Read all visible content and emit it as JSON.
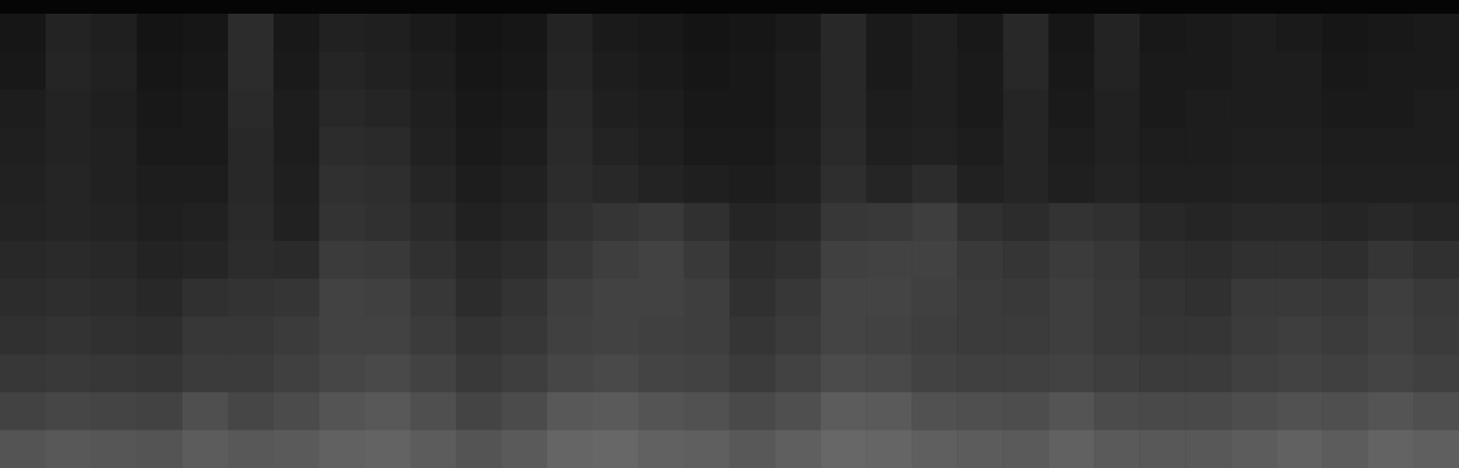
{
  "chart_data": {
    "type": "heatmap",
    "tick_labels": false,
    "zlim": [
      0,
      100
    ],
    "cells": [
      [
        10,
        16,
        14,
        9,
        10,
        20,
        11,
        15,
        14,
        12,
        9,
        10,
        16,
        12,
        11,
        9,
        10,
        12,
        18,
        12,
        14,
        11,
        18,
        10,
        16,
        11,
        12,
        13,
        12,
        10,
        11,
        12
      ],
      [
        11,
        17,
        15,
        10,
        11,
        20,
        12,
        17,
        15,
        13,
        10,
        11,
        17,
        13,
        12,
        10,
        11,
        13,
        18,
        12,
        14,
        12,
        18,
        11,
        16,
        12,
        12,
        13,
        13,
        11,
        12,
        12
      ],
      [
        13,
        16,
        14,
        11,
        12,
        19,
        13,
        18,
        17,
        14,
        11,
        12,
        18,
        14,
        13,
        11,
        11,
        13,
        18,
        13,
        14,
        12,
        17,
        12,
        15,
        12,
        13,
        13,
        13,
        12,
        12,
        13
      ],
      [
        14,
        16,
        15,
        12,
        12,
        18,
        13,
        20,
        19,
        15,
        12,
        13,
        19,
        16,
        14,
        12,
        12,
        14,
        19,
        14,
        15,
        13,
        17,
        13,
        15,
        13,
        13,
        14,
        14,
        13,
        13,
        13
      ],
      [
        15,
        17,
        15,
        13,
        13,
        18,
        14,
        22,
        21,
        17,
        13,
        15,
        20,
        18,
        16,
        14,
        13,
        15,
        21,
        17,
        20,
        15,
        17,
        14,
        16,
        14,
        14,
        15,
        15,
        14,
        14,
        14
      ],
      [
        16,
        17,
        16,
        14,
        15,
        19,
        15,
        23,
        22,
        19,
        15,
        17,
        22,
        24,
        26,
        22,
        17,
        18,
        25,
        26,
        28,
        22,
        20,
        23,
        22,
        18,
        17,
        18,
        18,
        17,
        18,
        17
      ],
      [
        18,
        19,
        18,
        16,
        17,
        20,
        19,
        27,
        26,
        22,
        18,
        20,
        25,
        28,
        30,
        26,
        20,
        22,
        29,
        30,
        30,
        26,
        24,
        27,
        25,
        21,
        20,
        22,
        22,
        21,
        24,
        22
      ],
      [
        20,
        21,
        20,
        18,
        22,
        23,
        24,
        30,
        29,
        25,
        20,
        23,
        28,
        30,
        30,
        28,
        22,
        25,
        31,
        31,
        29,
        27,
        26,
        28,
        26,
        23,
        22,
        26,
        26,
        25,
        28,
        26
      ],
      [
        22,
        23,
        22,
        21,
        25,
        25,
        27,
        30,
        30,
        27,
        23,
        25,
        29,
        30,
        29,
        28,
        24,
        27,
        31,
        30,
        28,
        27,
        27,
        28,
        26,
        24,
        24,
        27,
        28,
        27,
        29,
        27
      ],
      [
        25,
        26,
        25,
        24,
        27,
        27,
        29,
        32,
        33,
        30,
        26,
        28,
        32,
        33,
        31,
        30,
        27,
        30,
        34,
        33,
        30,
        29,
        29,
        30,
        28,
        27,
        27,
        29,
        30,
        29,
        31,
        29
      ],
      [
        30,
        32,
        31,
        30,
        36,
        32,
        34,
        38,
        40,
        36,
        31,
        34,
        40,
        41,
        38,
        37,
        33,
        36,
        42,
        41,
        37,
        36,
        35,
        38,
        34,
        33,
        33,
        35,
        37,
        36,
        38,
        36
      ],
      [
        38,
        40,
        39,
        38,
        42,
        40,
        41,
        44,
        45,
        42,
        38,
        41,
        46,
        47,
        44,
        43,
        40,
        43,
        47,
        46,
        43,
        42,
        41,
        44,
        41,
        40,
        40,
        42,
        44,
        42,
        45,
        43
      ]
    ]
  }
}
